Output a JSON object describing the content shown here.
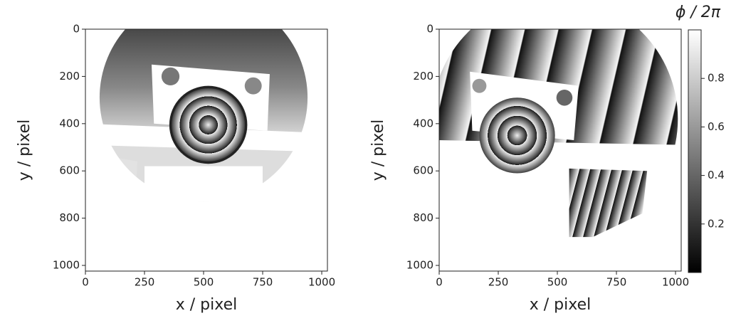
{
  "chart_data": [
    {
      "type": "image",
      "xlabel": "x / pixel",
      "ylabel": "y / pixel",
      "xlim": [
        0,
        1024
      ],
      "ylim": [
        1024,
        0
      ],
      "xticks": [
        0,
        250,
        500,
        750,
        1000
      ],
      "yticks": [
        0,
        200,
        400,
        600,
        800,
        1000
      ]
    },
    {
      "type": "image",
      "xlabel": "x / pixel",
      "ylabel": "y / pixel",
      "xlim": [
        0,
        1024
      ],
      "ylim": [
        1024,
        0
      ],
      "xticks": [
        0,
        250,
        500,
        750,
        1000
      ],
      "yticks": [
        0,
        200,
        400,
        600,
        800,
        1000
      ],
      "colorbar": {
        "label": "ϕ / 2π",
        "lim": [
          0,
          1
        ],
        "ticks": [
          0.2,
          0.4,
          0.6,
          0.8
        ]
      }
    }
  ]
}
